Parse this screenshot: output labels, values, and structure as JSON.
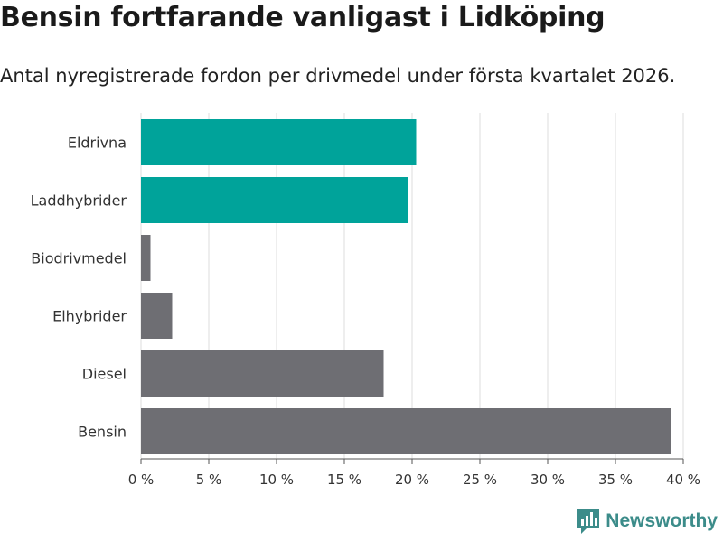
{
  "header": {
    "title": "Bensin fortfarande vanligast i Lidköping",
    "subtitle": "Antal nyregistrerade fordon per drivmedel under första kvartalet 2026."
  },
  "colors": {
    "highlight": "#00a39a",
    "base": "#6e6e73",
    "grid": "#dcdcdc",
    "brand": "#3c8c8a"
  },
  "chart_data": {
    "type": "bar",
    "orientation": "horizontal",
    "title": "Bensin fortfarande vanligast i Lidköping",
    "subtitle": "Antal nyregistrerade fordon per drivmedel under första kvartalet 2026.",
    "xlabel": "",
    "ylabel": "",
    "xlim": [
      0,
      40
    ],
    "ticks": [
      0,
      5,
      10,
      15,
      20,
      25,
      30,
      35,
      40
    ],
    "tick_labels": [
      "0 %",
      "5 %",
      "10 %",
      "15 %",
      "20 %",
      "25 %",
      "30 %",
      "35 %",
      "40 %"
    ],
    "grid": true,
    "categories": [
      "Eldrivna",
      "Laddhybrider",
      "Biodrivmedel",
      "Elhybrider",
      "Diesel",
      "Bensin"
    ],
    "values": [
      20.3,
      19.7,
      0.7,
      2.3,
      17.9,
      39.1
    ],
    "highlighted": [
      true,
      true,
      false,
      false,
      false,
      false
    ]
  },
  "branding": {
    "name": "Newsworthy",
    "logo_icon": "newsworthy-bar-chart-icon"
  }
}
